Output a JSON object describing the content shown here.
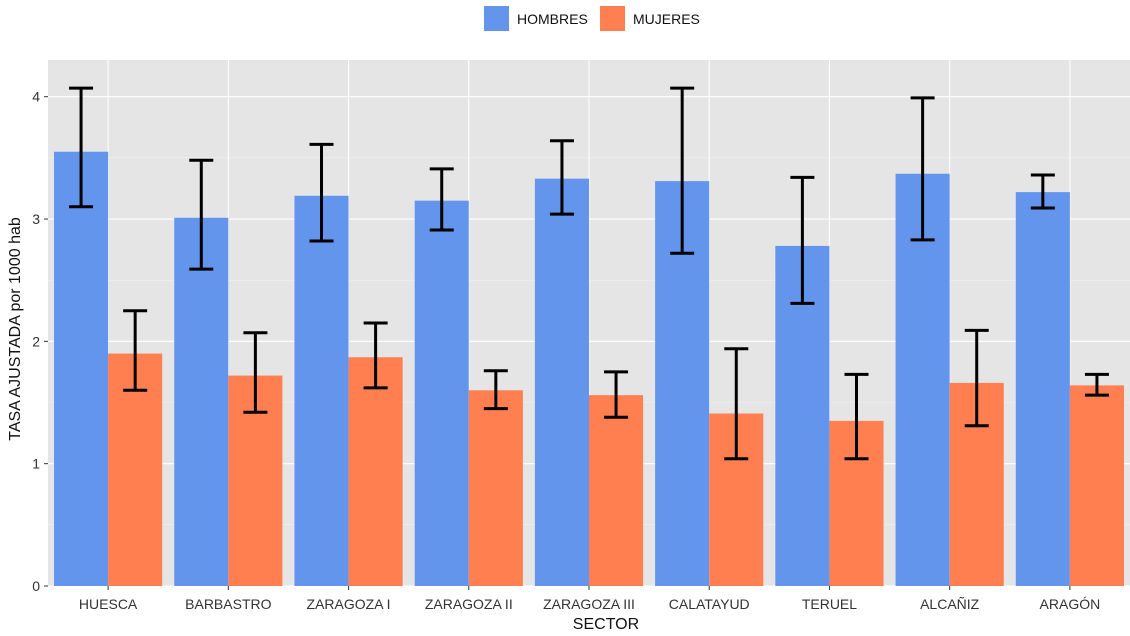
{
  "chart_data": {
    "type": "bar",
    "xlabel": "SECTOR",
    "ylabel": "TASA AJUSTADA por 1000 hab",
    "ylim": [
      0,
      4.3
    ],
    "yticks": [
      0,
      1,
      2,
      3,
      4
    ],
    "grid": true,
    "legend_position": "top",
    "categories": [
      "HUESCA",
      "BARBASTRO",
      "ZARAGOZA I",
      "ZARAGOZA II",
      "ZARAGOZA III",
      "CALATAYUD",
      "TERUEL",
      "ALCAÑIZ",
      "ARAGÓN"
    ],
    "series": [
      {
        "name": "HOMBRES",
        "color": "#6495ED",
        "values": [
          3.55,
          3.01,
          3.19,
          3.15,
          3.33,
          3.31,
          2.78,
          3.37,
          3.22
        ],
        "lower": [
          3.1,
          2.59,
          2.82,
          2.91,
          3.04,
          2.72,
          2.31,
          2.83,
          3.09
        ],
        "upper": [
          4.07,
          3.48,
          3.61,
          3.41,
          3.64,
          4.07,
          3.34,
          3.99,
          3.36
        ]
      },
      {
        "name": "MUJERES",
        "color": "#FF7F50",
        "values": [
          1.9,
          1.72,
          1.87,
          1.6,
          1.56,
          1.41,
          1.35,
          1.66,
          1.64
        ],
        "lower": [
          1.6,
          1.42,
          1.62,
          1.45,
          1.38,
          1.04,
          1.04,
          1.31,
          1.56
        ],
        "upper": [
          2.25,
          2.07,
          2.15,
          1.76,
          1.75,
          1.94,
          1.73,
          2.09,
          1.73
        ]
      }
    ]
  }
}
